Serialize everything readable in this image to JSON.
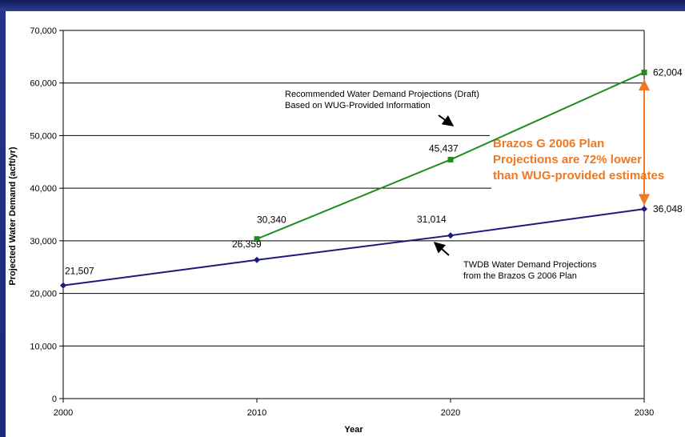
{
  "chart_data": {
    "type": "line",
    "xlabel": "Year",
    "ylabel": "Projected Water Demand (acft/yr)",
    "ylim": [
      0,
      70000
    ],
    "xlim": [
      2000,
      2030
    ],
    "grid": true,
    "y_ticks": [
      "0",
      "10,000",
      "20,000",
      "30,000",
      "40,000",
      "50,000",
      "60,000",
      "70,000"
    ],
    "x_ticks": [
      "2000",
      "2010",
      "2020",
      "2030"
    ],
    "series": [
      {
        "key": "recommended",
        "color": "#1e8c1e",
        "marker": "square",
        "x": [
          2010,
          2020,
          2030
        ],
        "y": [
          30340,
          45437,
          62004
        ],
        "labels": [
          "30,340",
          "45,437",
          "62,004"
        ]
      },
      {
        "key": "twdb",
        "color": "#1a1a80",
        "marker": "diamond",
        "x": [
          2000,
          2010,
          2020,
          2030
        ],
        "y": [
          21507,
          26359,
          31014,
          36048
        ],
        "labels": [
          "21,507",
          "26,359",
          "31,014",
          "36,048"
        ]
      }
    ],
    "annotations": {
      "recommended_note": [
        "Recommended Water Demand Projections (Draft)",
        "Based on WUG-Provided Information"
      ],
      "twdb_note": [
        "TWDB Water Demand Projections",
        "from the Brazos G 2006 Plan"
      ],
      "callout": [
        "Brazos G 2006 Plan",
        "Projections are 72% lower",
        "than WUG-provided estimates"
      ],
      "callout_color": "#f07820"
    }
  }
}
